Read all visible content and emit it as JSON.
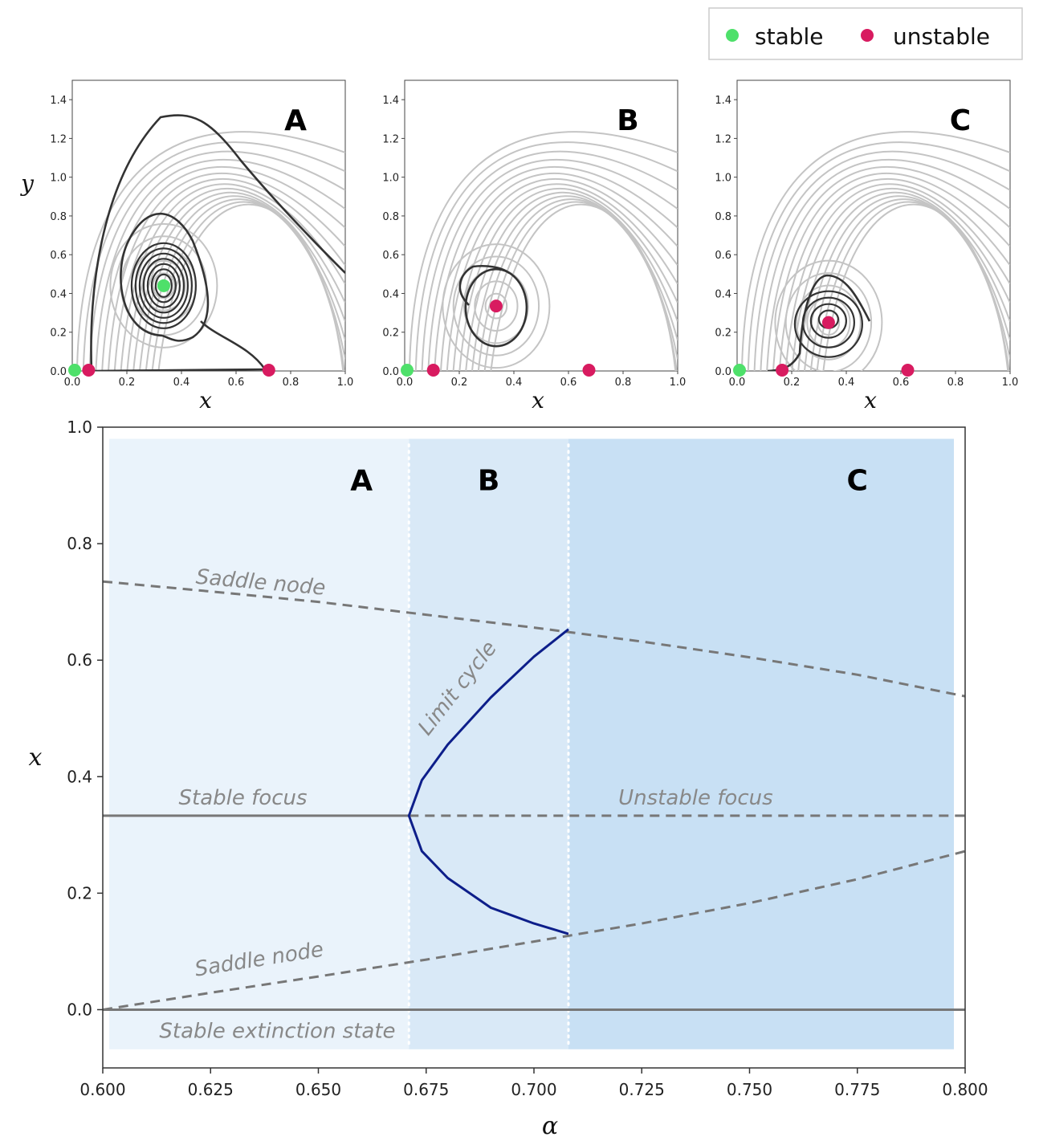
{
  "legend": {
    "items": [
      {
        "label": "stable",
        "color": "#4ee06a"
      },
      {
        "label": "unstable",
        "color": "#d81b60"
      }
    ]
  },
  "chart_data": [
    {
      "type": "scatter",
      "subtype": "phase-portrait",
      "panel": "A",
      "xlabel": "x",
      "ylabel": "y",
      "xlim": [
        0,
        1.0
      ],
      "ylim": [
        0,
        1.5
      ],
      "xticks": [
        "0.0",
        "0.2",
        "0.4",
        "0.6",
        "0.8",
        "1.0"
      ],
      "yticks": [
        "0.0",
        "0.2",
        "0.4",
        "0.6",
        "0.8",
        "1.0",
        "1.2",
        "1.4"
      ],
      "fixed_points": [
        {
          "x": 0.0,
          "y": 0.0,
          "stability": "stable"
        },
        {
          "x": 0.06,
          "y": 0.0,
          "stability": "unstable"
        },
        {
          "x": 0.72,
          "y": 0.0,
          "stability": "unstable"
        },
        {
          "x": 0.335,
          "y": 0.44,
          "stability": "stable"
        }
      ]
    },
    {
      "type": "scatter",
      "subtype": "phase-portrait",
      "panel": "B",
      "xlabel": "x",
      "xlim": [
        0,
        1.0
      ],
      "ylim": [
        0,
        1.5
      ],
      "xticks": [
        "0.0",
        "0.2",
        "0.4",
        "0.6",
        "0.8",
        "1.0"
      ],
      "yticks": [
        "0.0",
        "0.2",
        "0.4",
        "0.6",
        "0.8",
        "1.0",
        "1.2",
        "1.4"
      ],
      "fixed_points": [
        {
          "x": 0.0,
          "y": 0.0,
          "stability": "stable"
        },
        {
          "x": 0.105,
          "y": 0.0,
          "stability": "unstable"
        },
        {
          "x": 0.675,
          "y": 0.0,
          "stability": "unstable"
        },
        {
          "x": 0.335,
          "y": 0.335,
          "stability": "unstable"
        }
      ]
    },
    {
      "type": "scatter",
      "subtype": "phase-portrait",
      "panel": "C",
      "xlabel": "x",
      "xlim": [
        0,
        1.0
      ],
      "ylim": [
        0,
        1.5
      ],
      "xticks": [
        "0.0",
        "0.2",
        "0.4",
        "0.6",
        "0.8",
        "1.0"
      ],
      "yticks": [
        "0.0",
        "0.2",
        "0.4",
        "0.6",
        "0.8",
        "1.0",
        "1.2",
        "1.4"
      ],
      "fixed_points": [
        {
          "x": 0.0,
          "y": 0.0,
          "stability": "stable"
        },
        {
          "x": 0.165,
          "y": 0.0,
          "stability": "unstable"
        },
        {
          "x": 0.625,
          "y": 0.0,
          "stability": "unstable"
        },
        {
          "x": 0.335,
          "y": 0.25,
          "stability": "unstable"
        }
      ]
    },
    {
      "type": "line",
      "subtype": "bifurcation-diagram",
      "xlabel": "α",
      "ylabel": "x",
      "xlim": [
        0.6,
        0.8
      ],
      "ylim": [
        -0.1,
        1.0
      ],
      "xticks": [
        "0.600",
        "0.625",
        "0.650",
        "0.675",
        "0.700",
        "0.725",
        "0.750",
        "0.775",
        "0.800"
      ],
      "yticks": [
        "0.0",
        "0.2",
        "0.4",
        "0.6",
        "0.8",
        "1.0"
      ],
      "region_boundaries": [
        0.671,
        0.708
      ],
      "regions": [
        {
          "label": "A",
          "from": 0.6,
          "to": 0.671
        },
        {
          "label": "B",
          "from": 0.671,
          "to": 0.708
        },
        {
          "label": "C",
          "from": 0.708,
          "to": 0.8
        }
      ],
      "annotations": {
        "saddle_upper": "Saddle node",
        "saddle_lower": "Saddle node",
        "limit_cycle": "Limit cycle",
        "stable_focus": "Stable focus",
        "unstable_focus": "Unstable focus",
        "extinction": "Stable extinction state"
      },
      "series": [
        {
          "name": "Saddle node (upper)",
          "style": "dashed",
          "x": [
            0.6,
            0.625,
            0.65,
            0.675,
            0.7,
            0.725,
            0.75,
            0.775,
            0.8
          ],
          "y": [
            0.735,
            0.718,
            0.7,
            0.678,
            0.656,
            0.632,
            0.605,
            0.575,
            0.538
          ]
        },
        {
          "name": "Saddle node (lower)",
          "style": "dashed",
          "x": [
            0.6,
            0.625,
            0.65,
            0.675,
            0.7,
            0.725,
            0.75,
            0.775,
            0.8
          ],
          "y": [
            0.0,
            0.029,
            0.057,
            0.086,
            0.117,
            0.148,
            0.183,
            0.224,
            0.272
          ]
        },
        {
          "name": "Stable focus",
          "style": "solid",
          "x": [
            0.6,
            0.671
          ],
          "y": [
            0.333,
            0.333
          ]
        },
        {
          "name": "Unstable focus",
          "style": "dashed",
          "x": [
            0.671,
            0.8
          ],
          "y": [
            0.333,
            0.333
          ]
        },
        {
          "name": "Stable extinction state",
          "style": "solid",
          "x": [
            0.6,
            0.8
          ],
          "y": [
            0.0,
            0.0
          ]
        },
        {
          "name": "Limit cycle",
          "style": "solid",
          "x": [
            0.708,
            0.7,
            0.69,
            0.68,
            0.674,
            0.671,
            0.674,
            0.68,
            0.69,
            0.7,
            0.708
          ],
          "y": [
            0.653,
            0.606,
            0.536,
            0.455,
            0.394,
            0.333,
            0.272,
            0.226,
            0.175,
            0.148,
            0.13
          ]
        }
      ]
    }
  ]
}
